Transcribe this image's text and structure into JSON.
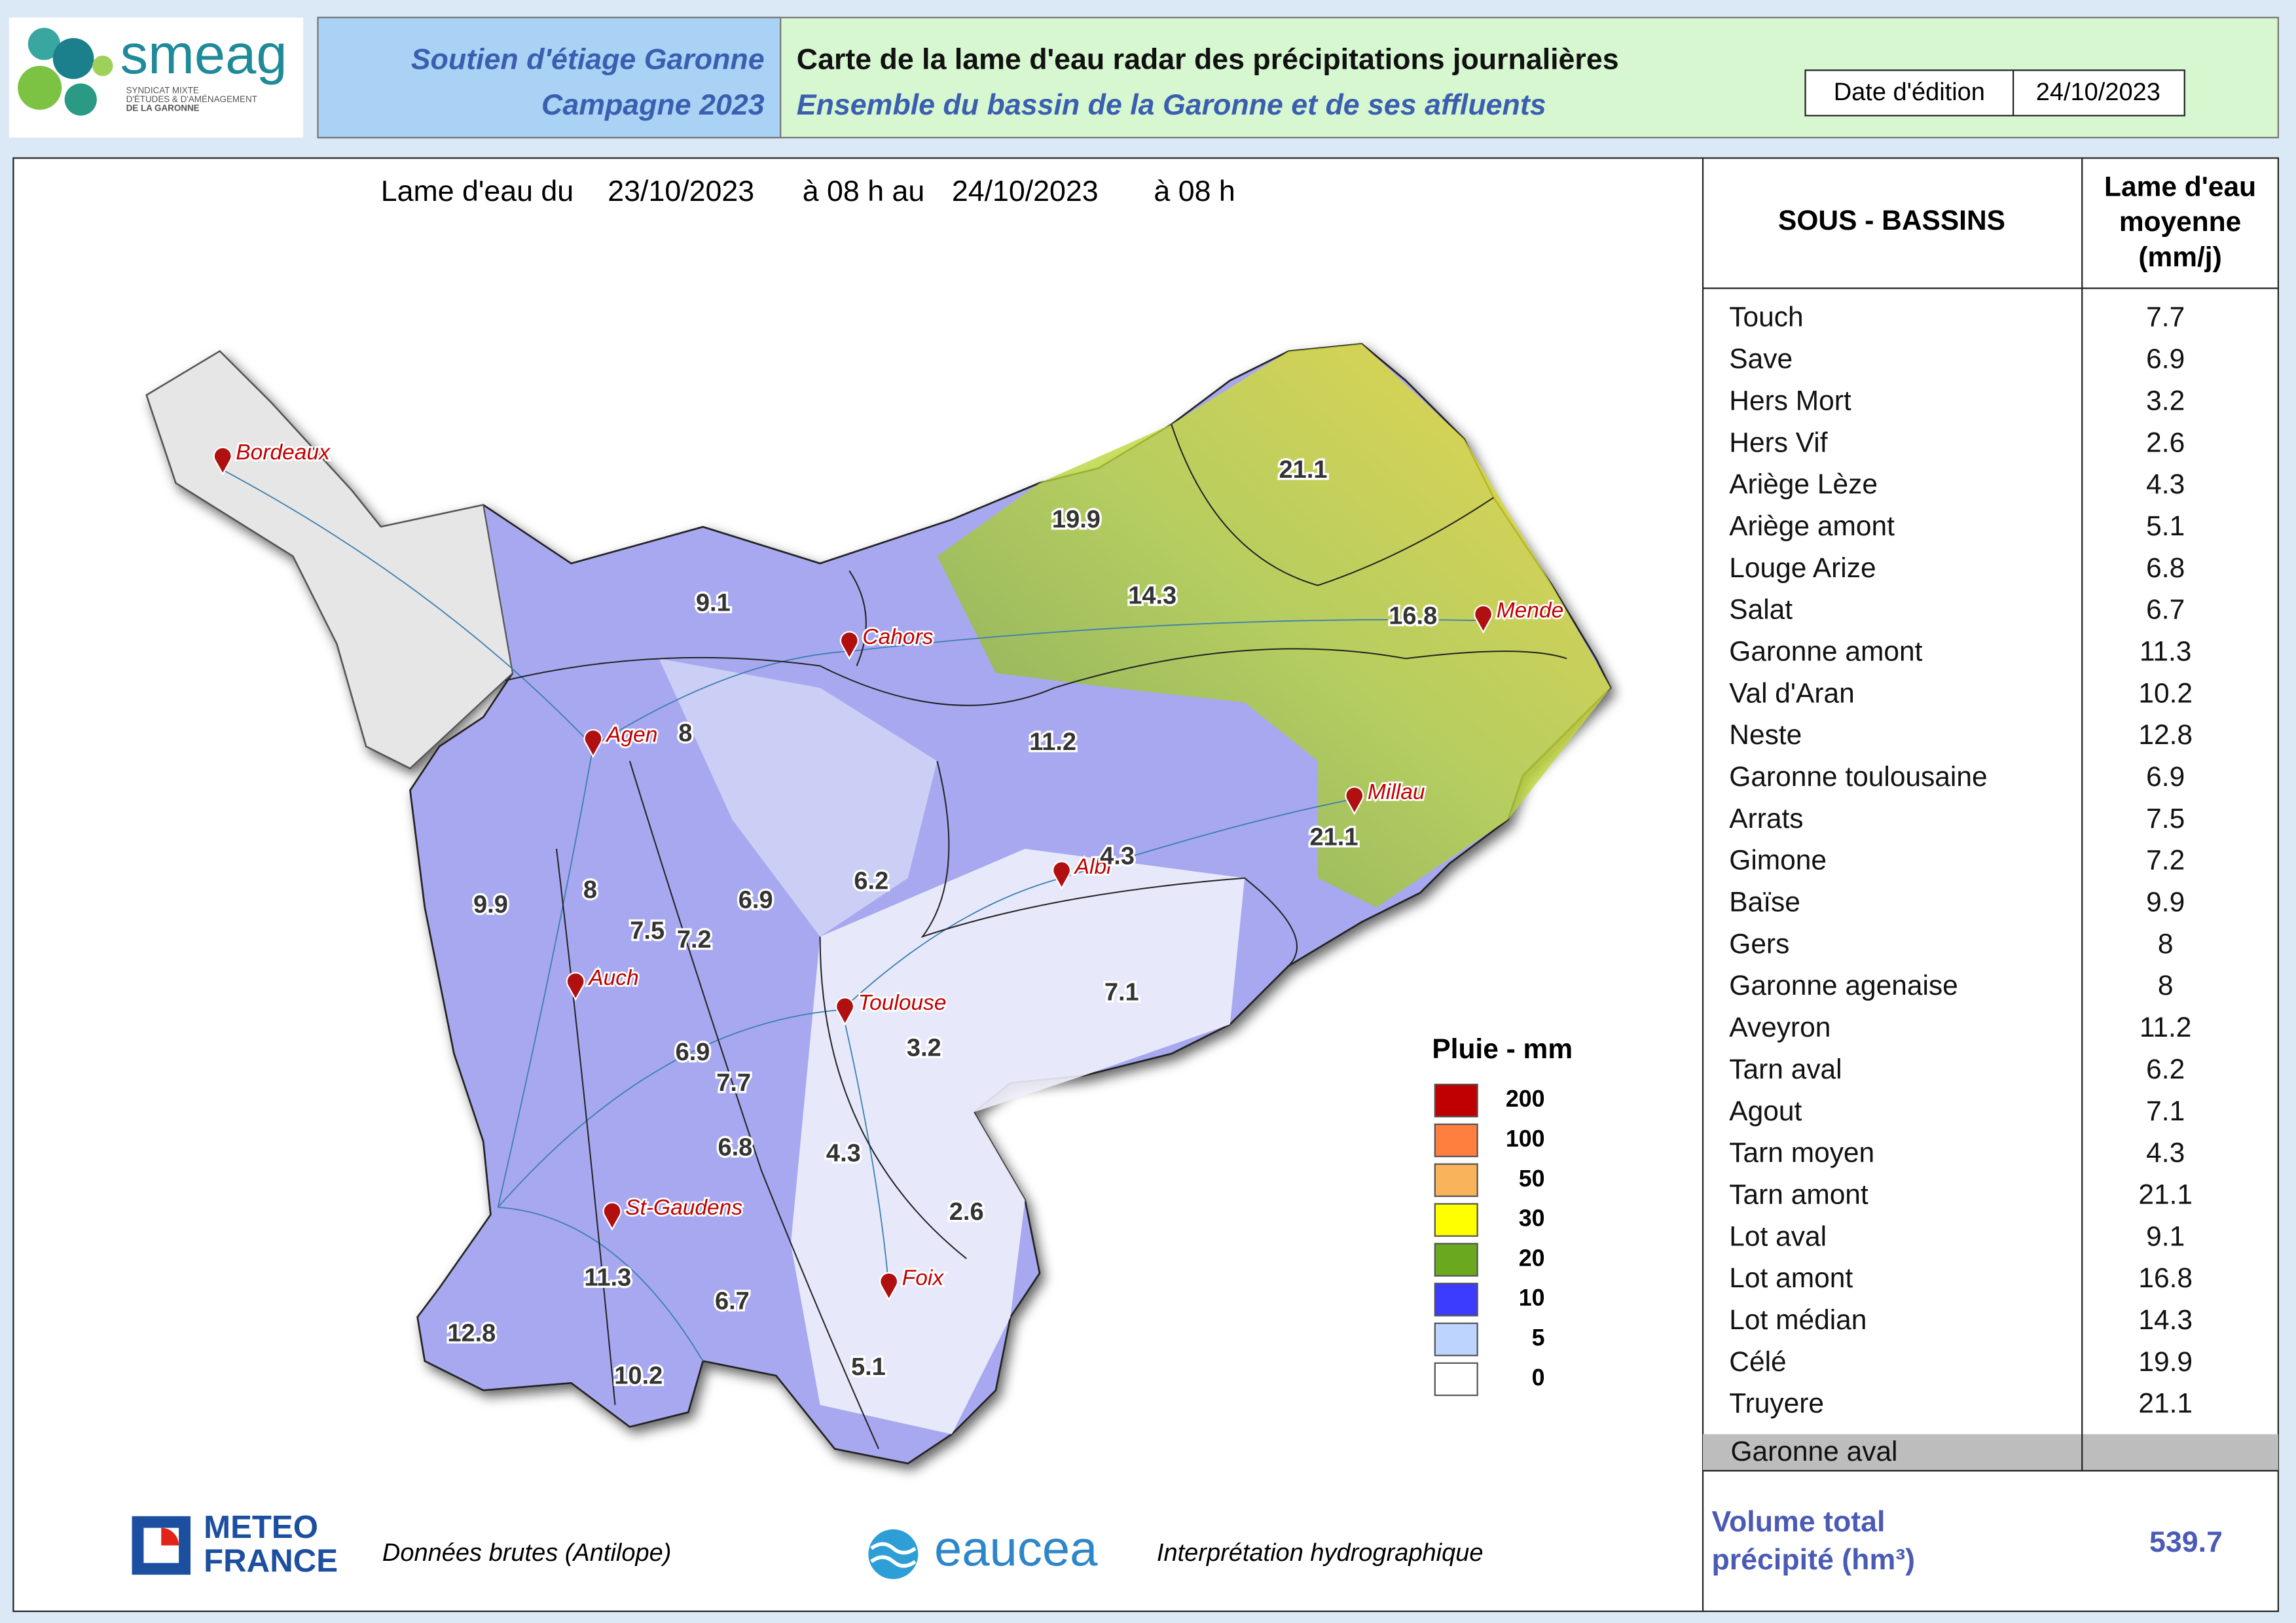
{
  "logo": {
    "name": "smeag",
    "tagline": [
      "SYNDICAT MIXTE",
      "D'ÉTUDES & D'AMÉNAGEMENT",
      "DE LA GARONNE"
    ]
  },
  "header": {
    "left_title": "Soutien d'étiage Garonne",
    "left_subtitle": "Campagne 2023",
    "title": "Carte de la lame d'eau radar des précipitations journalières",
    "subtitle": "Ensemble du bassin de la Garonne et de ses affluents",
    "date_label": "Date d'édition",
    "date": "24/10/2023"
  },
  "map": {
    "title_parts": [
      "Lame d'eau du",
      "23/10/2023",
      "à 08 h au",
      "24/10/2023",
      "à 08 h"
    ],
    "cities": [
      "Bordeaux",
      "Cahors",
      "Agen",
      "Albi",
      "Millau",
      "Mende",
      "Auch",
      "Toulouse",
      "St-Gaudens",
      "Foix"
    ],
    "basin_labels": [
      9.1,
      19.9,
      21.1,
      14.3,
      16.8,
      8,
      11.2,
      21.1,
      4.3,
      6.2,
      9.9,
      8,
      6.9,
      7.5,
      7.2,
      7.1,
      3.2,
      6.9,
      7.7,
      6.8,
      4.3,
      2.6,
      11.3,
      6.7,
      12.8,
      10.2,
      5.1
    ]
  },
  "legend": {
    "title": "Pluie - mm",
    "classes": [
      {
        "value": 200,
        "color": "#c00000"
      },
      {
        "value": 100,
        "color": "#ff7f3f"
      },
      {
        "value": 50,
        "color": "#f9b35a"
      },
      {
        "value": 30,
        "color": "#ffff00"
      },
      {
        "value": 20,
        "color": "#6aa81e"
      },
      {
        "value": 10,
        "color": "#3c3cff"
      },
      {
        "value": 5,
        "color": "#bcd4ff"
      },
      {
        "value": 0,
        "color": "#ffffff"
      }
    ]
  },
  "table": {
    "header_basins": "SOUS - BASSINS",
    "header_value": [
      "Lame d'eau",
      "moyenne",
      "(mm/j)"
    ],
    "rows": [
      [
        "Touch",
        7.7
      ],
      [
        "Save",
        6.9
      ],
      [
        "Hers Mort",
        3.2
      ],
      [
        "Hers Vif",
        2.6
      ],
      [
        "Ariège Lèze",
        4.3
      ],
      [
        "Ariège amont",
        5.1
      ],
      [
        "Louge Arize",
        6.8
      ],
      [
        "Salat",
        6.7
      ],
      [
        "Garonne amont",
        11.3
      ],
      [
        "Val d'Aran",
        10.2
      ],
      [
        "Neste",
        12.8
      ],
      [
        "Garonne toulousaine",
        6.9
      ],
      [
        "Arrats",
        7.5
      ],
      [
        "Gimone",
        7.2
      ],
      [
        "Baïse",
        9.9
      ],
      [
        "Gers",
        8
      ],
      [
        "Garonne agenaise",
        8
      ],
      [
        "Aveyron",
        11.2
      ],
      [
        "Tarn aval",
        6.2
      ],
      [
        "Agout",
        7.1
      ],
      [
        "Tarn moyen",
        4.3
      ],
      [
        "Tarn amont",
        21.1
      ],
      [
        "Lot aval",
        9.1
      ],
      [
        "Lot amont",
        16.8
      ],
      [
        "Lot médian",
        14.3
      ],
      [
        "Célé",
        19.9
      ],
      [
        "Truyere",
        21.1
      ]
    ],
    "footer_row": "Garonne aval",
    "total_label": [
      "Volume total",
      "précipité (hm³)"
    ],
    "total": 539.7
  },
  "footer": {
    "meteo_logo": [
      "METEO",
      "FRANCE"
    ],
    "meteo_text": "Données brutes (Antilope)",
    "eaucea_logo": "eaucea",
    "eaucea_text": "Interprétation hydrographique"
  }
}
